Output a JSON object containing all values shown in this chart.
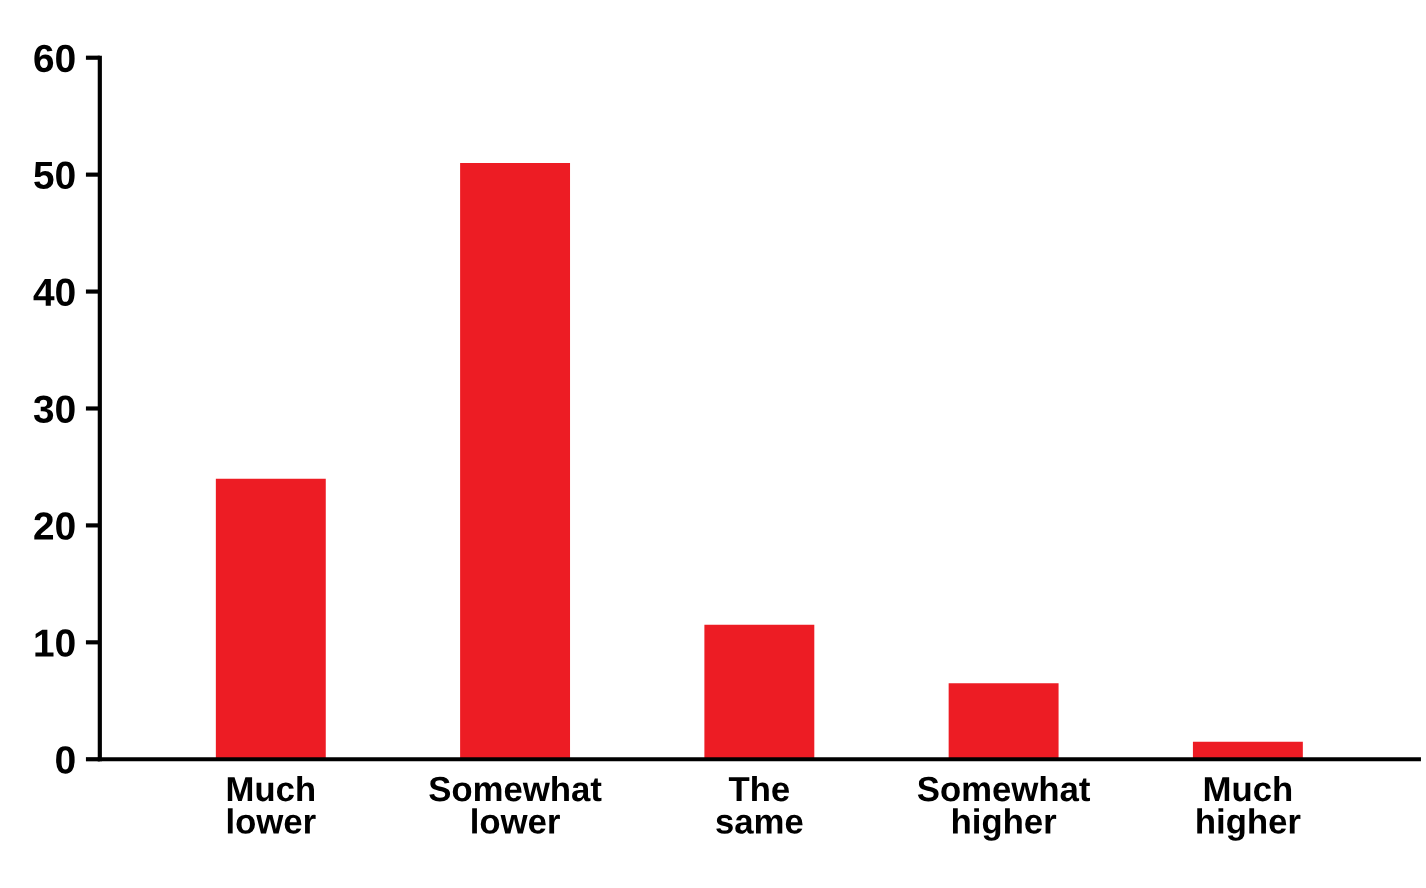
{
  "chart_data": {
    "type": "bar",
    "categories": [
      "Much\nlower",
      "Somewhat\nlower",
      "The\nsame",
      "Somewhat\nhigher",
      "Much\nhigher"
    ],
    "values": [
      24,
      51,
      11.5,
      6.5,
      1.5
    ],
    "color": "#ed1c24",
    "ylim": [
      0,
      60
    ],
    "yticks": [
      0,
      10,
      20,
      30,
      40,
      50,
      60
    ]
  }
}
